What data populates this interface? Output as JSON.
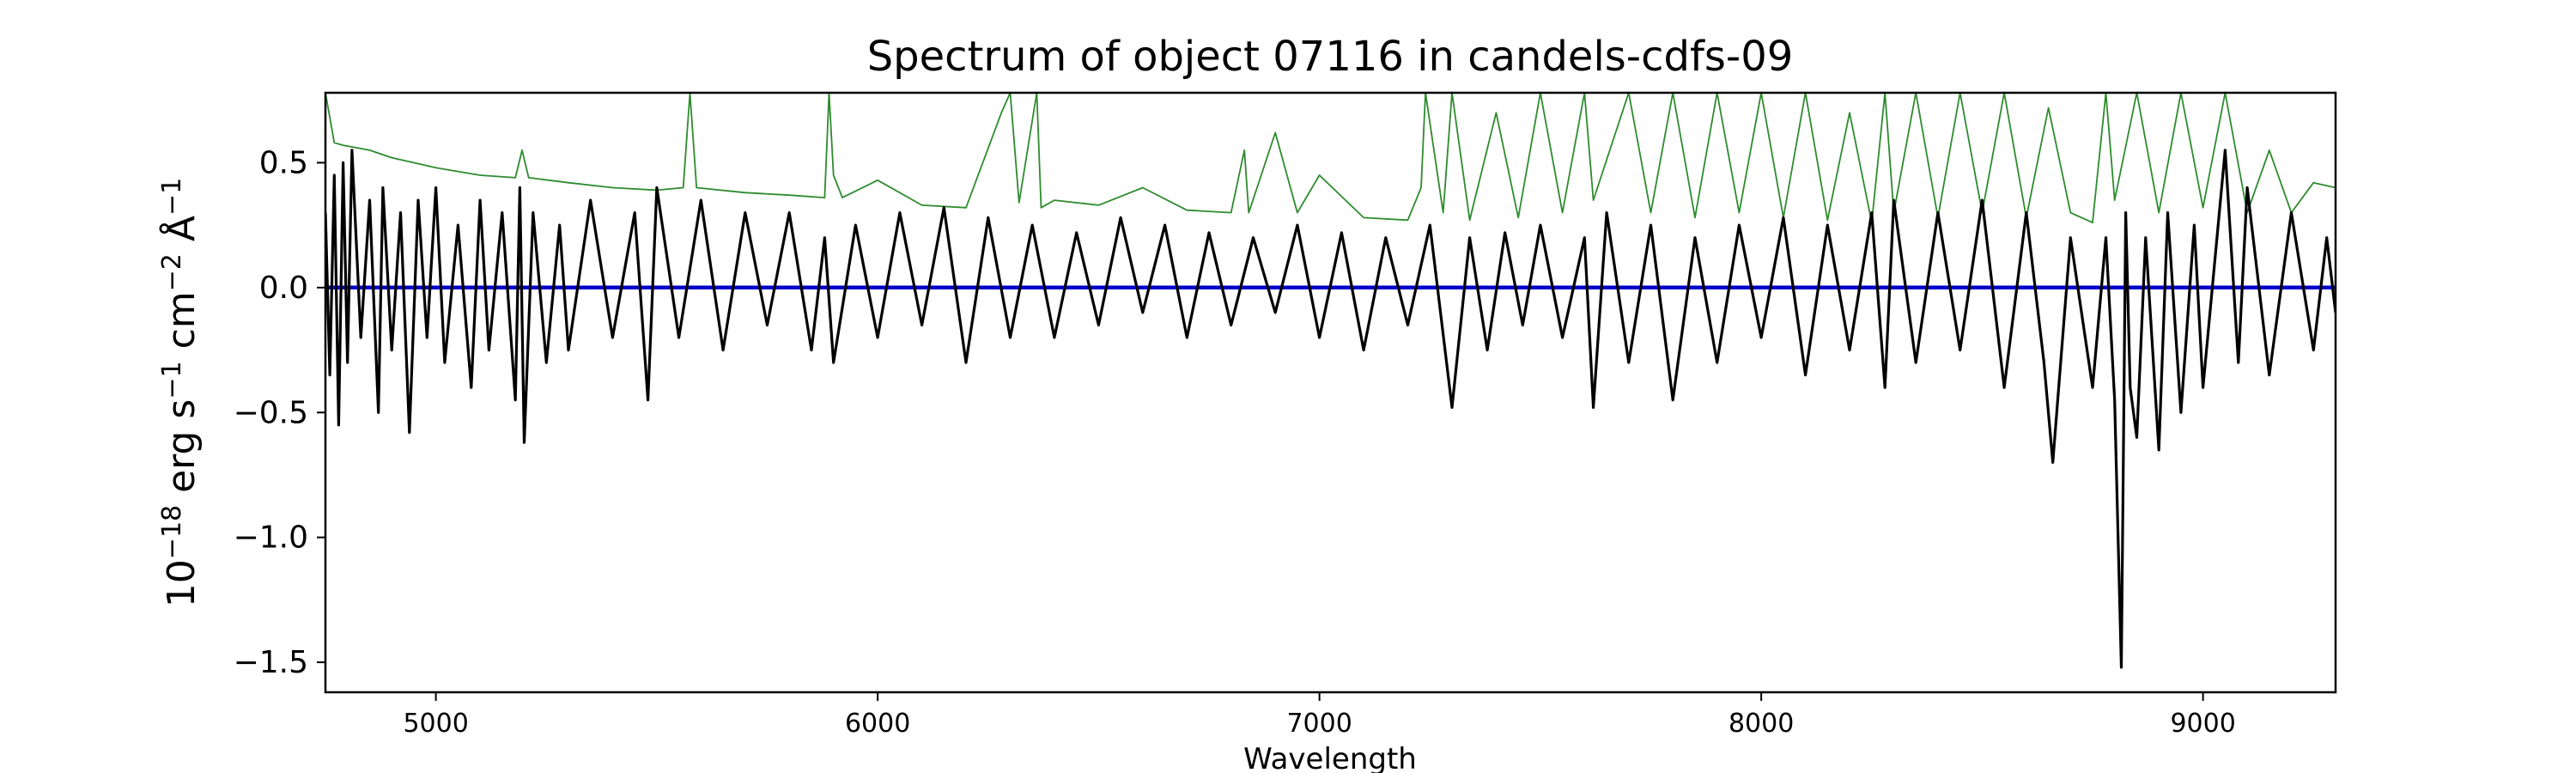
{
  "chart_data": {
    "type": "line",
    "title": "Spectrum of object 07116 in candels-cdfs-09",
    "xlabel": "Wavelength",
    "ylabel_parts": [
      "10",
      "−18",
      " erg s",
      "−1",
      " cm",
      "−2",
      " Å",
      "−1"
    ],
    "xlim": [
      4750,
      9300
    ],
    "ylim": [
      -1.62,
      0.78
    ],
    "x_ticks": [
      {
        "value": 5000,
        "label": "5000"
      },
      {
        "value": 6000,
        "label": "6000"
      },
      {
        "value": 7000,
        "label": "7000"
      },
      {
        "value": 8000,
        "label": "8000"
      },
      {
        "value": 9000,
        "label": "9000"
      }
    ],
    "y_ticks": [
      {
        "value": 0.5,
        "label": "0.5"
      },
      {
        "value": 0.0,
        "label": "0.0"
      },
      {
        "value": -0.5,
        "label": "−0.5"
      },
      {
        "value": -1.0,
        "label": "−1.0"
      },
      {
        "value": -1.5,
        "label": "−1.5"
      }
    ],
    "grid": false,
    "series": [
      {
        "role": "model",
        "color": "#0000cc",
        "x": [
          4750,
          9300
        ],
        "y": [
          0.0,
          0.0
        ]
      },
      {
        "role": "error",
        "color": "#2e8b2e",
        "x": [
          4750,
          4770,
          4790,
          4850,
          4900,
          5000,
          5100,
          5180,
          5195,
          5210,
          5300,
          5400,
          5500,
          5560,
          5575,
          5590,
          5700,
          5800,
          5880,
          5890,
          5900,
          5920,
          6000,
          6100,
          6200,
          6280,
          6300,
          6320,
          6360,
          6370,
          6400,
          6500,
          6600,
          6700,
          6800,
          6830,
          6840,
          6900,
          6950,
          7000,
          7100,
          7200,
          7230,
          7240,
          7280,
          7300,
          7340,
          7400,
          7450,
          7500,
          7550,
          7600,
          7620,
          7700,
          7750,
          7800,
          7850,
          7900,
          7950,
          8000,
          8050,
          8100,
          8150,
          8200,
          8250,
          8280,
          8300,
          8350,
          8400,
          8450,
          8500,
          8550,
          8600,
          8650,
          8700,
          8750,
          8780,
          8800,
          8850,
          8900,
          8950,
          9000,
          9050,
          9100,
          9150,
          9200,
          9250,
          9300
        ],
        "y": [
          0.78,
          0.58,
          0.57,
          0.55,
          0.52,
          0.48,
          0.45,
          0.44,
          0.55,
          0.44,
          0.42,
          0.4,
          0.39,
          0.4,
          0.78,
          0.4,
          0.38,
          0.37,
          0.36,
          0.78,
          0.45,
          0.36,
          0.43,
          0.33,
          0.32,
          0.7,
          0.78,
          0.34,
          0.78,
          0.32,
          0.35,
          0.33,
          0.4,
          0.31,
          0.3,
          0.55,
          0.3,
          0.62,
          0.3,
          0.45,
          0.28,
          0.27,
          0.4,
          0.78,
          0.3,
          0.78,
          0.27,
          0.7,
          0.28,
          0.78,
          0.3,
          0.78,
          0.35,
          0.78,
          0.3,
          0.78,
          0.28,
          0.78,
          0.3,
          0.78,
          0.28,
          0.78,
          0.27,
          0.7,
          0.26,
          0.78,
          0.3,
          0.78,
          0.28,
          0.78,
          0.3,
          0.78,
          0.28,
          0.72,
          0.3,
          0.26,
          0.78,
          0.35,
          0.78,
          0.3,
          0.78,
          0.32,
          0.78,
          0.3,
          0.55,
          0.3,
          0.42,
          0.4
        ]
      },
      {
        "role": "flux",
        "color": "#000000",
        "x": [
          4750,
          4760,
          4770,
          4780,
          4790,
          4800,
          4810,
          4830,
          4850,
          4870,
          4880,
          4900,
          4920,
          4940,
          4960,
          4980,
          5000,
          5020,
          5050,
          5080,
          5100,
          5120,
          5150,
          5180,
          5190,
          5200,
          5220,
          5250,
          5280,
          5300,
          5350,
          5400,
          5450,
          5480,
          5500,
          5550,
          5600,
          5650,
          5700,
          5750,
          5800,
          5850,
          5880,
          5900,
          5950,
          6000,
          6050,
          6100,
          6150,
          6200,
          6250,
          6300,
          6350,
          6400,
          6450,
          6500,
          6550,
          6600,
          6650,
          6700,
          6750,
          6800,
          6850,
          6900,
          6950,
          7000,
          7050,
          7100,
          7150,
          7200,
          7250,
          7300,
          7340,
          7380,
          7420,
          7460,
          7500,
          7550,
          7600,
          7620,
          7650,
          7700,
          7750,
          7800,
          7850,
          7900,
          7950,
          8000,
          8050,
          8100,
          8150,
          8200,
          8250,
          8280,
          8300,
          8350,
          8400,
          8450,
          8500,
          8550,
          8600,
          8640,
          8660,
          8700,
          8750,
          8780,
          8800,
          8815,
          8825,
          8835,
          8850,
          8870,
          8900,
          8920,
          8950,
          8980,
          9000,
          9050,
          9080,
          9100,
          9150,
          9200,
          9250,
          9280,
          9300
        ],
        "y": [
          0.3,
          -0.35,
          0.45,
          -0.55,
          0.5,
          -0.3,
          0.55,
          -0.2,
          0.35,
          -0.5,
          0.4,
          -0.25,
          0.3,
          -0.58,
          0.35,
          -0.2,
          0.4,
          -0.3,
          0.25,
          -0.4,
          0.35,
          -0.25,
          0.3,
          -0.45,
          0.4,
          -0.62,
          0.3,
          -0.3,
          0.25,
          -0.25,
          0.35,
          -0.2,
          0.3,
          -0.45,
          0.4,
          -0.2,
          0.35,
          -0.25,
          0.3,
          -0.15,
          0.3,
          -0.25,
          0.2,
          -0.3,
          0.25,
          -0.2,
          0.3,
          -0.15,
          0.32,
          -0.3,
          0.28,
          -0.2,
          0.25,
          -0.2,
          0.22,
          -0.15,
          0.28,
          -0.1,
          0.25,
          -0.2,
          0.22,
          -0.15,
          0.2,
          -0.1,
          0.25,
          -0.2,
          0.22,
          -0.25,
          0.2,
          -0.15,
          0.25,
          -0.48,
          0.2,
          -0.25,
          0.22,
          -0.15,
          0.25,
          -0.2,
          0.2,
          -0.48,
          0.3,
          -0.3,
          0.25,
          -0.45,
          0.2,
          -0.3,
          0.25,
          -0.2,
          0.28,
          -0.35,
          0.25,
          -0.25,
          0.3,
          -0.4,
          0.35,
          -0.3,
          0.3,
          -0.25,
          0.35,
          -0.4,
          0.3,
          -0.3,
          -0.7,
          0.2,
          -0.4,
          0.2,
          -0.45,
          -1.52,
          0.3,
          -0.4,
          -0.6,
          0.2,
          -0.65,
          0.3,
          -0.5,
          0.25,
          -0.4,
          0.55,
          -0.3,
          0.4,
          -0.35,
          0.3,
          -0.25,
          0.2,
          -0.1
        ]
      }
    ]
  }
}
